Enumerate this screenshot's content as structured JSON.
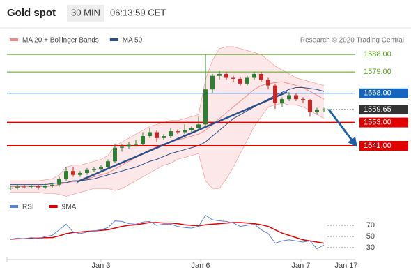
{
  "header": {
    "title": "Gold spot",
    "timeframe": "30 MIN",
    "time": "06:13:59 CET"
  },
  "chart_data": [
    {
      "type": "candlestick",
      "source": "Research © 2020 Trading Central",
      "x": [
        0,
        1,
        2,
        3,
        4,
        5,
        6,
        7,
        8,
        9,
        10,
        11,
        12,
        13,
        14,
        15,
        16,
        17,
        18,
        19,
        20,
        21,
        22,
        23,
        24,
        25,
        26,
        27,
        28,
        29,
        30,
        31,
        32,
        33,
        34,
        35,
        36,
        37,
        38,
        39,
        40,
        41,
        42,
        43,
        44,
        45
      ],
      "open": [
        1519,
        1519.5,
        1520,
        1519.8,
        1520.2,
        1519.6,
        1520.5,
        1521,
        1524,
        1528,
        1526,
        1527,
        1528.5,
        1529,
        1530,
        1533,
        1540,
        1540.5,
        1541.5,
        1542,
        1546,
        1548,
        1545,
        1546,
        1548.5,
        1548,
        1549,
        1550,
        1552,
        1570,
        1577,
        1578,
        1576,
        1575.5,
        1573,
        1576,
        1578,
        1575,
        1572,
        1563,
        1565,
        1567,
        1565,
        1564.5,
        1558.5,
        1559.5
      ],
      "high": [
        1520.5,
        1521,
        1521,
        1521,
        1521,
        1521.5,
        1522,
        1525,
        1530,
        1530,
        1528,
        1529.5,
        1530,
        1531,
        1534,
        1542,
        1542,
        1543,
        1544,
        1548,
        1550,
        1549,
        1547,
        1550,
        1549.5,
        1552,
        1551,
        1556,
        1588,
        1578,
        1579.5,
        1579,
        1577,
        1576.5,
        1577,
        1579,
        1579,
        1576,
        1573,
        1566,
        1568.5,
        1568,
        1566,
        1565,
        1560.5,
        1560.5
      ],
      "low": [
        1518,
        1518.5,
        1519,
        1519,
        1518.5,
        1518.8,
        1519.5,
        1520,
        1523,
        1525,
        1525,
        1526,
        1527.5,
        1528,
        1529,
        1532,
        1538,
        1539.5,
        1540.5,
        1541,
        1545,
        1543,
        1544,
        1545,
        1547,
        1547,
        1548,
        1549,
        1551,
        1568,
        1575,
        1575,
        1574,
        1572,
        1572,
        1575,
        1574,
        1570,
        1560,
        1561,
        1564,
        1564,
        1563,
        1556,
        1557,
        1558.5
      ],
      "close": [
        1519.5,
        1520,
        1519.8,
        1520.2,
        1519.6,
        1520.5,
        1521,
        1524,
        1528,
        1526,
        1527,
        1528.5,
        1529,
        1530,
        1533,
        1540,
        1540.5,
        1541.5,
        1542,
        1546,
        1548,
        1545,
        1546,
        1548.5,
        1548,
        1549,
        1550,
        1552,
        1570,
        1577,
        1578,
        1576,
        1575.5,
        1573,
        1576,
        1578,
        1575,
        1572,
        1563,
        1565,
        1567,
        1565,
        1564.5,
        1558.5,
        1559.5,
        1559.65
      ],
      "up_color": "#2e7d32",
      "down_color": "#c62828",
      "series": [
        {
          "name": "MA 20 + Bollinger Bands",
          "color": "#f08a8a",
          "values": [
            1520,
            1520,
            1520,
            1520,
            1520,
            1520,
            1520.3,
            1521,
            1522,
            1522.5,
            1523,
            1524,
            1525,
            1526,
            1527,
            1529,
            1531,
            1533,
            1535,
            1537,
            1539,
            1540.5,
            1542,
            1543,
            1544,
            1545,
            1546,
            1547,
            1549,
            1552,
            1555,
            1558,
            1561,
            1564,
            1567,
            1570,
            1572,
            1573,
            1573.5,
            1574,
            1573,
            1572,
            1571,
            1569,
            1567,
            1565
          ],
          "upper": [
            1523,
            1523,
            1523,
            1523,
            1523,
            1523.5,
            1524,
            1526,
            1530,
            1531,
            1531,
            1532,
            1533,
            1534,
            1536,
            1541,
            1543,
            1545,
            1547,
            1549,
            1551,
            1552,
            1553,
            1554,
            1554,
            1555,
            1556,
            1557,
            1575,
            1585,
            1591,
            1592,
            1592,
            1591,
            1590,
            1589,
            1588,
            1585,
            1582,
            1580,
            1578,
            1576,
            1575,
            1574,
            1573,
            1572
          ],
          "lower": [
            1517,
            1517,
            1517,
            1517,
            1517,
            1516.5,
            1516.5,
            1516,
            1515,
            1516,
            1517,
            1518,
            1519,
            1519,
            1519,
            1518,
            1519,
            1521,
            1523,
            1525,
            1527,
            1529,
            1531,
            1532,
            1534,
            1535,
            1536,
            1537,
            1523,
            1519,
            1519,
            1524,
            1530,
            1537,
            1544,
            1551,
            1556,
            1561,
            1562,
            1563,
            1562,
            1562,
            1561,
            1559,
            1557,
            1555
          ]
        },
        {
          "name": "MA 50",
          "color": "#2a4f8a",
          "values": [
            1521,
            1521,
            1521,
            1521,
            1521,
            1521,
            1521.5,
            1522,
            1522,
            1523,
            1523,
            1523.5,
            1524,
            1525,
            1526,
            1527,
            1528,
            1529,
            1530,
            1531.5,
            1533,
            1534,
            1535.5,
            1537,
            1538,
            1539,
            1540,
            1541,
            1543,
            1546,
            1549,
            1552,
            1555,
            1557,
            1559,
            1561,
            1563,
            1565,
            1567,
            1568.5,
            1570,
            1571,
            1571,
            1570.5,
            1570,
            1569
          ]
        }
      ],
      "levels": [
        {
          "value": 1588,
          "label": "1588.00",
          "color": "#5aa01e",
          "boxed": false
        },
        {
          "value": 1579,
          "label": "1579.00",
          "color": "#5aa01e",
          "boxed": false
        },
        {
          "value": 1568,
          "label": "1568.00",
          "color": "#1565c0",
          "boxed": true
        },
        {
          "value": 1559.65,
          "color": "#333333",
          "boxed": true
        },
        {
          "value": 1553,
          "label": "1553.00",
          "color": "#e00000",
          "boxed": true
        },
        {
          "value": 1541,
          "label": "1541.00",
          "color": "#e00000",
          "boxed": true
        }
      ],
      "xlim": [
        -0.5,
        49.5
      ],
      "ylim": [
        1515.5,
        1594.5
      ]
    },
    {
      "type": "line",
      "x": [
        0,
        1,
        2,
        3,
        4,
        5,
        6,
        7,
        8,
        9,
        10,
        11,
        12,
        13,
        14,
        15,
        16,
        17,
        18,
        19,
        20,
        21,
        22,
        23,
        24,
        25,
        26,
        27,
        28,
        29,
        30,
        31,
        32,
        33,
        34,
        35,
        36,
        37,
        38,
        39,
        40,
        41,
        42,
        43,
        44,
        45
      ],
      "series": [
        {
          "name": "RSI",
          "color": "#5b7fd6",
          "values": [
            45,
            47,
            46,
            48,
            46,
            50,
            52,
            62,
            72,
            58,
            55,
            58,
            60,
            62,
            66,
            78,
            77,
            73,
            72,
            76,
            77,
            70,
            72,
            72,
            68,
            66,
            65,
            68,
            88,
            80,
            78,
            77,
            74,
            68,
            70,
            72,
            62,
            55,
            38,
            42,
            44,
            42,
            40,
            42,
            28,
            35
          ]
        },
        {
          "name": "9MA",
          "color": "#e00000",
          "values": [
            45,
            46,
            46,
            47,
            47,
            48,
            48,
            51,
            55,
            57,
            58,
            59,
            60,
            61,
            62,
            65,
            68,
            70,
            71,
            73,
            75,
            75,
            74,
            74,
            73,
            71,
            70,
            69,
            71,
            72,
            73,
            74,
            75,
            75,
            74,
            73,
            71,
            68,
            62,
            56,
            52,
            48,
            44,
            42,
            40,
            38
          ]
        }
      ],
      "xlim": [
        -0.5,
        49.5
      ],
      "xticks": [
        {
          "value": 13,
          "label": "Jan 3"
        },
        {
          "value": 27.3,
          "label": "Jan 6"
        },
        {
          "value": 41.7,
          "label": "Jan 7"
        },
        {
          "value": 48.2,
          "label": "Jan 17"
        }
      ],
      "ylim": [
        10,
        95
      ],
      "yticks": [
        30,
        50,
        70
      ]
    }
  ]
}
